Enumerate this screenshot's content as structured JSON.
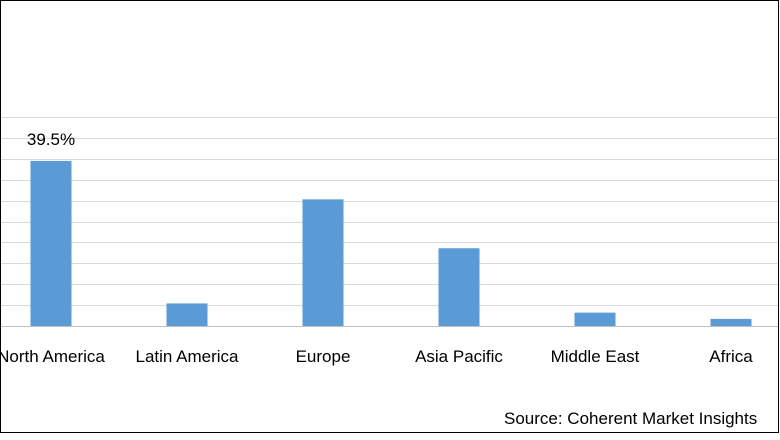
{
  "chart_data": {
    "type": "bar",
    "title": "",
    "xlabel": "",
    "ylabel": "",
    "categories": [
      "North America",
      "Latin America",
      "Europe",
      "Asia Pacific",
      "Middle East",
      "Africa"
    ],
    "values": [
      39.5,
      5.4,
      30.3,
      18.6,
      3.2,
      1.7
    ],
    "data_labels": [
      {
        "category": "North America",
        "text": "39.5%"
      }
    ],
    "ylim": [
      0,
      50
    ],
    "grid": true,
    "legend": "none",
    "bar_color": "#5B9BD5",
    "grid_color": "#D9D9D9"
  },
  "footer": {
    "source_text": "Source: Coherent Market Insights"
  }
}
